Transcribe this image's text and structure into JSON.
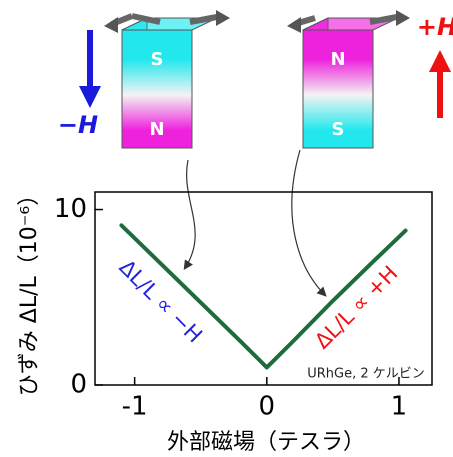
{
  "illustration": {
    "left_magnet": {
      "top": "S",
      "bottom": "N"
    },
    "right_magnet": {
      "top": "N",
      "bottom": "S"
    },
    "left_field": "−H",
    "right_field": "+H"
  },
  "chart_data": {
    "type": "line",
    "y_label": "ひずみ ΔL/L（10⁻⁶）",
    "x_label": "外部磁場（テスラ）",
    "annotations": [
      {
        "text": "ΔL/L ∝ −H",
        "color": "#2222dd"
      },
      {
        "text": "ΔL/L ∝ +H",
        "color": "#ee1111"
      },
      {
        "text": "URhGe, 2 ケルビン",
        "color": "#222222"
      }
    ],
    "x": [
      -1.1,
      -0.8,
      -0.5,
      -0.2,
      0,
      0.2,
      0.5,
      0.8,
      1.05
    ],
    "series": [
      {
        "name": "URhGe",
        "color": "#1e6b3c",
        "values": [
          9.1,
          6.9,
          4.7,
          2.5,
          1.0,
          2.5,
          4.8,
          7.0,
          8.8
        ]
      }
    ],
    "xlim": [
      -1.3,
      1.25
    ],
    "xticks": [
      -1,
      0,
      1
    ],
    "ylim": [
      0,
      11
    ],
    "yticks": [
      0,
      10
    ]
  }
}
